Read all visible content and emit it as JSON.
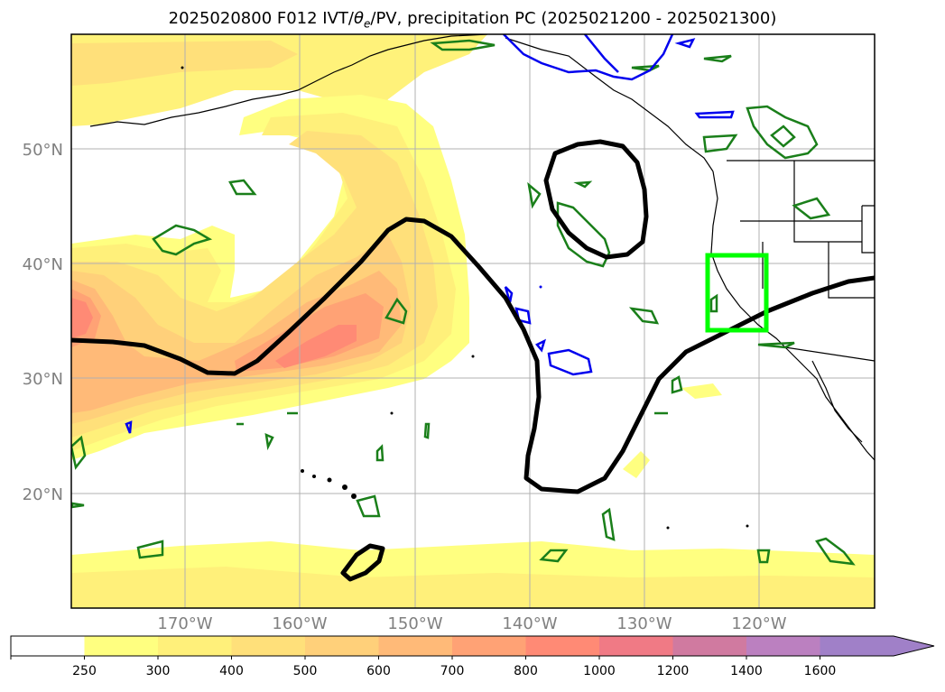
{
  "title": {
    "prefix": "2025020800 F012 IVT/",
    "theta": "θ",
    "theta_sub": "e",
    "suffix": "/PV, precipitation PC (2025021200 - 2025021300)"
  },
  "lat_labels": [
    "50°N",
    "40°N",
    "30°N",
    "20°N"
  ],
  "lon_labels": [
    "170°W",
    "160°W",
    "150°W",
    "140°W",
    "130°W",
    "120°W"
  ],
  "colorbar": {
    "ticks": [
      "250",
      "300",
      "400",
      "500",
      "600",
      "700",
      "800",
      "1000",
      "1200",
      "1400",
      "1600"
    ],
    "colors": [
      "#ffff80",
      "#fff07a",
      "#ffe07a",
      "#ffd07a",
      "#ffba78",
      "#ffa275",
      "#ff8a75",
      "#f07a85",
      "#d07aa0",
      "#bb80c0",
      "#a080c8"
    ],
    "extend": "max"
  },
  "colors": {
    "pv_contour": "#000000",
    "green_contour": "#1a7f1a",
    "blue_contour": "#0000ee",
    "highlight_box": "#00ff00",
    "coastline": "#000000",
    "grid": "#b0b0b0"
  }
}
